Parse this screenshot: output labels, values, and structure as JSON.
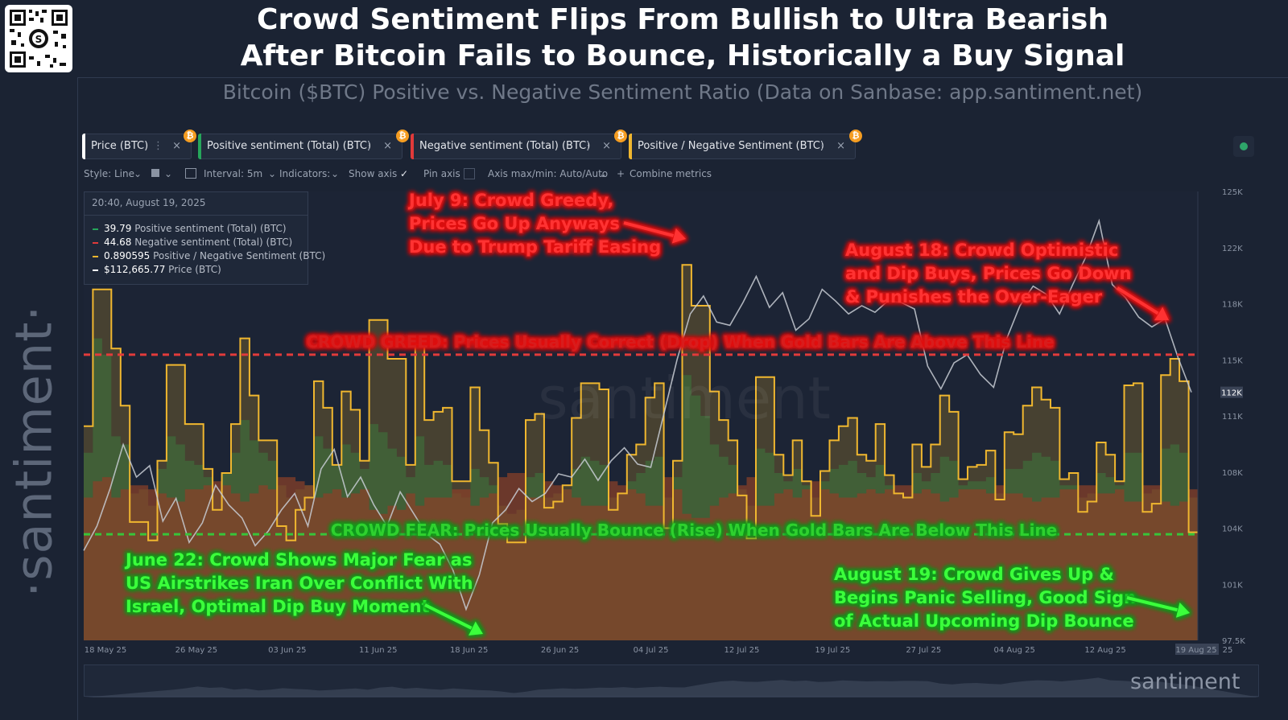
{
  "header": {
    "title_line1": "Crowd Sentiment Flips From Bullish to Ultra Bearish",
    "title_line2": "After Bitcoin Fails to Bounce, Historically a Buy Signal",
    "subtitle": "Bitcoin ($BTC) Positive vs. Negative Sentiment Ratio (Data on Sanbase: app.santiment.net)",
    "brand_vertical": "·santiment·",
    "brand_corner": "santiment"
  },
  "metric_tabs": [
    {
      "label": "Price (BTC)",
      "color": "#ffffff"
    },
    {
      "label": "Positive sentiment (Total) (BTC)",
      "color": "#26a65b"
    },
    {
      "label": "Negative sentiment (Total) (BTC)",
      "color": "#e03a3a"
    },
    {
      "label": "Positive / Negative Sentiment (BTC)",
      "color": "#f0b72f"
    }
  ],
  "tab_menu_icon": "⋮",
  "tab_close_icon": "×",
  "badge_icon": "₿",
  "toolbar": {
    "style": "Style: Line",
    "interval": "Interval: 5m",
    "indicators": "Indicators:",
    "show_axis": "Show axis",
    "pin_axis": "Pin axis",
    "axis_maxmin": "Axis max/min: Auto/Auto",
    "combine": "Combine metrics"
  },
  "tooltip": {
    "timestamp": "20:40, August 19, 2025",
    "rows": [
      {
        "value": "39.79",
        "label": "Positive sentiment (Total) (BTC)",
        "color": "#26a65b"
      },
      {
        "value": "44.68",
        "label": "Negative sentiment (Total) (BTC)",
        "color": "#e03a3a"
      },
      {
        "value": "0.890595",
        "label": "Positive / Negative Sentiment (BTC)",
        "color": "#f0b72f"
      },
      {
        "value": "$112,665.77",
        "label": "Price (BTC)",
        "color": "#ffffff"
      }
    ]
  },
  "annotations": {
    "greed_line": "CROWD GREED: Prices Usually Correct (Drop) When Gold Bars Are Above This Line",
    "fear_line": "CROWD FEAR: Prices Usually Bounce (Rise) When Gold Bars Are Below This Line",
    "july9": [
      "July 9: Crowd Greedy,",
      "Prices Go Up Anyways",
      "Due to Trump Tariff Easing"
    ],
    "aug18": [
      "August 18: Crowd Optimistic",
      "and Dip Buys, Prices Go Down",
      "& Punishes the Over-Eager"
    ],
    "june22": [
      "June 22: Crowd Shows Major Fear as",
      "US Airstrikes Iran Over Conflict With",
      "Israel, Optimal Dip Buy Moment"
    ],
    "aug19": [
      "August 19: Crowd Gives Up &",
      "Begins Panic Selling, Good Sign",
      "of Actual Upcoming Dip Bounce"
    ]
  },
  "chart_data": {
    "type": "line",
    "x_tick_labels": [
      "18 May 25",
      "26 May 25",
      "03 Jun 25",
      "11 Jun 25",
      "18 Jun 25",
      "26 Jun 25",
      "04 Jul 25",
      "12 Jul 25",
      "19 Jul 25",
      "27 Jul 25",
      "04 Aug 25",
      "12 Aug 25",
      "19 Aug 25"
    ],
    "x_tick_suffix": "25",
    "y_price_ticks": [
      "125K",
      "122K",
      "118K",
      "115K",
      "111K",
      "108K",
      "104K",
      "101K",
      "97.5K"
    ],
    "y_price_range": [
      97500,
      125000
    ],
    "current_price_tag": "112K",
    "ratio_range": [
      0,
      2.2
    ],
    "greed_threshold": 1.4,
    "fear_threshold": 0.52,
    "ratio_series": {
      "name": "Positive / Negative Sentiment (BTC)",
      "values": [
        1.05,
        1.72,
        1.72,
        1.43,
        1.15,
        0.58,
        0.58,
        0.49,
        0.88,
        1.35,
        1.35,
        1.06,
        1.06,
        0.84,
        0.64,
        0.82,
        1.06,
        1.48,
        1.2,
        0.98,
        0.98,
        0.56,
        0.49,
        0.64,
        0.7,
        1.27,
        1.14,
        0.86,
        1.22,
        1.13,
        0.88,
        1.57,
        1.57,
        1.38,
        1.38,
        0.86,
        1.45,
        1.08,
        1.12,
        1.14,
        0.78,
        0.78,
        1.24,
        1.03,
        0.87,
        0.57,
        0.48,
        0.48,
        1.08,
        1.11,
        0.65,
        0.68,
        0.76,
        1.09,
        1.26,
        1.26,
        1.23,
        0.64,
        0.72,
        0.91,
        0.96,
        1.19,
        1.26,
        0.55,
        0.88,
        1.84,
        1.64,
        1.64,
        1.22,
        1.08,
        0.98,
        0.71,
        0.5,
        1.29,
        1.29,
        0.91,
        0.81,
        0.98,
        0.78,
        0.61,
        0.83,
        0.98,
        1.05,
        1.09,
        0.91,
        0.88,
        1.06,
        0.81,
        0.72,
        0.7,
        0.96,
        0.85,
        0.96,
        1.2,
        1.12,
        0.79,
        0.85,
        0.86,
        0.93,
        0.69,
        1.02,
        1.01,
        1.15,
        1.24,
        1.18,
        1.14,
        0.79,
        0.82,
        0.63,
        0.68,
        0.97,
        0.91,
        0.78,
        1.25,
        1.26,
        0.63,
        0.67,
        1.3,
        1.38,
        1.27,
        0.53
      ]
    },
    "positive_series": {
      "name": "Positive sentiment (Total) (BTC)",
      "values": [
        0.92,
        1.48,
        1.4,
        1.0,
        0.96,
        0.72,
        0.74,
        0.66,
        0.84,
        1.0,
        0.96,
        0.88,
        0.86,
        0.8,
        0.74,
        0.82,
        0.92,
        1.08,
        0.98,
        0.92,
        0.88,
        0.76,
        0.7,
        0.74,
        0.76,
        1.0,
        0.94,
        0.86,
        0.96,
        0.92,
        0.84,
        1.06,
        1.02,
        0.94,
        0.9,
        0.8,
        1.0,
        0.86,
        0.88,
        0.86,
        0.72,
        0.7,
        0.84,
        0.8,
        0.76,
        0.66,
        0.62,
        0.64,
        0.8,
        0.82,
        0.7,
        0.72,
        0.74,
        0.84,
        0.9,
        0.88,
        0.86,
        0.7,
        0.72,
        0.78,
        0.82,
        0.88,
        0.9,
        0.7,
        0.8,
        1.3,
        1.2,
        1.1,
        0.96,
        0.9,
        0.86,
        0.74,
        0.66,
        0.94,
        0.92,
        0.82,
        0.78,
        0.84,
        0.76,
        0.7,
        0.78,
        0.84,
        0.86,
        0.88,
        0.82,
        0.8,
        0.86,
        0.76,
        0.72,
        0.7,
        0.82,
        0.78,
        0.82,
        0.9,
        0.88,
        0.76,
        0.78,
        0.78,
        0.8,
        0.72,
        0.84,
        0.84,
        0.88,
        0.92,
        0.9,
        0.88,
        0.76,
        0.76,
        0.7,
        0.72,
        0.82,
        0.8,
        0.76,
        0.92,
        0.92,
        0.72,
        0.74,
        0.94,
        0.96,
        0.92,
        0.7
      ]
    },
    "negative_series": {
      "name": "Negative sentiment (Total) (BTC)",
      "values": [
        0.7,
        0.78,
        0.8,
        0.7,
        0.74,
        0.76,
        0.76,
        0.74,
        0.72,
        0.7,
        0.68,
        0.74,
        0.74,
        0.76,
        0.78,
        0.76,
        0.72,
        0.68,
        0.72,
        0.76,
        0.74,
        0.8,
        0.8,
        0.78,
        0.76,
        0.7,
        0.72,
        0.74,
        0.7,
        0.72,
        0.74,
        0.64,
        0.62,
        0.66,
        0.64,
        0.72,
        0.66,
        0.7,
        0.7,
        0.7,
        0.74,
        0.74,
        0.66,
        0.7,
        0.72,
        0.8,
        0.82,
        0.82,
        0.7,
        0.7,
        0.78,
        0.76,
        0.74,
        0.7,
        0.66,
        0.66,
        0.66,
        0.78,
        0.76,
        0.74,
        0.72,
        0.66,
        0.66,
        0.8,
        0.74,
        0.62,
        0.6,
        0.6,
        0.66,
        0.7,
        0.72,
        0.76,
        0.8,
        0.66,
        0.66,
        0.72,
        0.74,
        0.7,
        0.74,
        0.78,
        0.74,
        0.72,
        0.7,
        0.7,
        0.72,
        0.74,
        0.72,
        0.74,
        0.76,
        0.76,
        0.72,
        0.74,
        0.72,
        0.68,
        0.7,
        0.74,
        0.74,
        0.74,
        0.72,
        0.76,
        0.72,
        0.72,
        0.7,
        0.68,
        0.7,
        0.7,
        0.74,
        0.74,
        0.76,
        0.76,
        0.72,
        0.72,
        0.74,
        0.68,
        0.68,
        0.76,
        0.76,
        0.68,
        0.66,
        0.68,
        0.74
      ]
    },
    "price_series": {
      "name": "Price (BTC)",
      "values": [
        103000,
        104500,
        106800,
        109500,
        107500,
        108200,
        104800,
        106200,
        103500,
        104700,
        107000,
        105800,
        105000,
        103300,
        104200,
        105500,
        106500,
        104500,
        108000,
        109200,
        106300,
        107500,
        105800,
        104500,
        106600,
        105300,
        104000,
        103400,
        101800,
        99400,
        101500,
        104700,
        105500,
        106800,
        106000,
        106500,
        107700,
        107500,
        108600,
        107300,
        108500,
        109300,
        108300,
        108100,
        111400,
        114700,
        117500,
        118600,
        117000,
        116800,
        118200,
        119800,
        117900,
        118800,
        116500,
        117200,
        119000,
        118300,
        117500,
        118000,
        117600,
        118300,
        118200,
        117800,
        114300,
        112900,
        114500,
        115000,
        113800,
        113000,
        116000,
        118000,
        119200,
        118700,
        117500,
        119300,
        121000,
        123200,
        119300,
        118500,
        117300,
        116700,
        117200,
        114800,
        112700
      ]
    },
    "annotated_points": [
      {
        "date": "2025-06-22",
        "note": "June 22 fear low"
      },
      {
        "date": "2025-07-09",
        "note": "July 9 greed"
      },
      {
        "date": "2025-08-18",
        "note": "August 18 optimism"
      },
      {
        "date": "2025-08-19",
        "note": "August 19 panic"
      }
    ]
  }
}
